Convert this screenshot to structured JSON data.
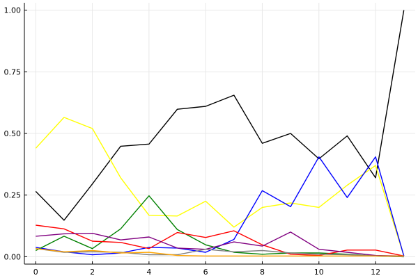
{
  "chart_data": {
    "type": "line",
    "title": "",
    "xlabel": "",
    "ylabel": "",
    "grid": true,
    "legend": "none",
    "xlim": [
      -0.4,
      13.4
    ],
    "ylim": [
      -0.03,
      1.03
    ],
    "x_ticks": [
      0,
      2,
      4,
      6,
      8,
      10,
      12
    ],
    "x_tick_labels": [
      "0",
      "2",
      "4",
      "6",
      "8",
      "10",
      "12"
    ],
    "y_ticks": [
      0,
      0.25,
      0.5,
      0.75,
      1.0
    ],
    "y_tick_labels": [
      "0.00",
      "0.25",
      "0.50",
      "0.75",
      "1.00"
    ],
    "x": [
      0,
      1,
      2,
      3,
      4,
      5,
      6,
      7,
      8,
      9,
      10,
      11,
      12,
      13
    ],
    "series": [
      {
        "name": "black",
        "color": "#000000",
        "values": [
          0.265,
          0.148,
          0.295,
          0.448,
          0.457,
          0.598,
          0.61,
          0.655,
          0.46,
          0.5,
          0.397,
          0.49,
          0.32,
          1.0
        ]
      },
      {
        "name": "yellow",
        "color": "#ffff00",
        "values": [
          0.44,
          0.565,
          0.52,
          0.32,
          0.168,
          0.165,
          0.225,
          0.12,
          0.2,
          0.218,
          0.2,
          0.29,
          0.37,
          0.003
        ]
      },
      {
        "name": "blue",
        "color": "#0000ff",
        "values": [
          0.038,
          0.02,
          0.008,
          0.015,
          0.038,
          0.035,
          0.018,
          0.07,
          0.268,
          0.203,
          0.405,
          0.24,
          0.405,
          0.003
        ]
      },
      {
        "name": "green",
        "color": "#008000",
        "values": [
          0.025,
          0.083,
          0.033,
          0.113,
          0.247,
          0.11,
          0.048,
          0.018,
          0.01,
          0.015,
          0.015,
          0.01,
          0.003,
          0.0
        ]
      },
      {
        "name": "red",
        "color": "#ff0000",
        "values": [
          0.128,
          0.113,
          0.063,
          0.058,
          0.033,
          0.098,
          0.078,
          0.105,
          0.048,
          0.01,
          0.005,
          0.027,
          0.027,
          0.003
        ]
      },
      {
        "name": "purple",
        "color": "#800080",
        "values": [
          0.083,
          0.093,
          0.095,
          0.068,
          0.08,
          0.035,
          0.03,
          0.06,
          0.043,
          0.1,
          0.03,
          0.018,
          0.005,
          0.003
        ]
      },
      {
        "name": "gray",
        "color": "#808080",
        "values": [
          0.033,
          0.018,
          0.02,
          0.018,
          0.008,
          0.008,
          0.03,
          0.02,
          0.025,
          0.015,
          0.01,
          0.008,
          0.003,
          0.0
        ]
      },
      {
        "name": "orange",
        "color": "#ffa500",
        "values": [
          0.033,
          0.02,
          0.025,
          0.015,
          0.018,
          0.005,
          0.003,
          0.003,
          0.003,
          0.003,
          0.003,
          0.003,
          0.003,
          0.003
        ]
      }
    ]
  }
}
